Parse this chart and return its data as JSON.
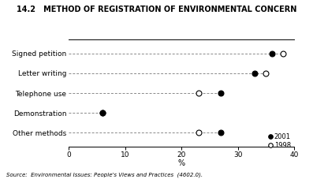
{
  "title": "14.2   METHOD OF REGISTRATION OF ENVIRONMENTAL CONCERN",
  "categories": [
    "Signed petition",
    "Letter writing",
    "Telephone use",
    "Demonstration",
    "Other methods"
  ],
  "data_2001": [
    36,
    33,
    27,
    6,
    27
  ],
  "data_1998": [
    38,
    35,
    23,
    6,
    23
  ],
  "xlim": [
    0,
    40
  ],
  "xticks": [
    0,
    10,
    20,
    30,
    40
  ],
  "xlabel": "%",
  "source": "Source:  Environmental Issues: People's Views and Practices  (4602.0).",
  "legend_2001": "2001",
  "legend_1998": "1998",
  "color_filled": "black",
  "color_open": "white",
  "marker_size": 5,
  "dashed_color": "#888888",
  "background_color": "white"
}
